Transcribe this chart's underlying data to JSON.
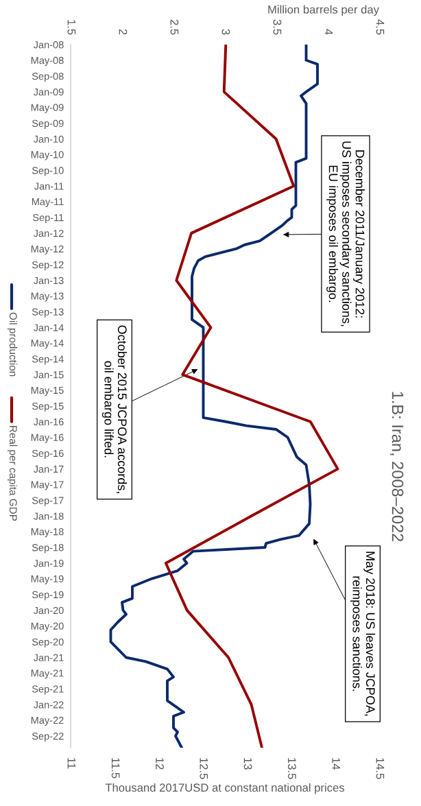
{
  "chart_data": {
    "type": "line",
    "orientation": "horizontal",
    "title": "1.B: Iran, 2008–2022",
    "x2label": "Million barrels per day",
    "xlabel": "Thousand 2017USD at constant national prices",
    "ylim": [
      "2022-12",
      "2008-01"
    ],
    "yticks": [
      {
        "value": "2008-01",
        "label": "Jan-08"
      },
      {
        "value": "2008-05",
        "label": "May-08"
      },
      {
        "value": "2008-09",
        "label": "Sep-08"
      },
      {
        "value": "2009-01",
        "label": "Jan-09"
      },
      {
        "value": "2009-05",
        "label": "May-09"
      },
      {
        "value": "2009-09",
        "label": "Sep-09"
      },
      {
        "value": "2010-01",
        "label": "Jan-10"
      },
      {
        "value": "2010-05",
        "label": "May-10"
      },
      {
        "value": "2010-09",
        "label": "Sep-10"
      },
      {
        "value": "2011-01",
        "label": "Jan-11"
      },
      {
        "value": "2011-05",
        "label": "May-11"
      },
      {
        "value": "2011-09",
        "label": "Sep-11"
      },
      {
        "value": "2012-01",
        "label": "Jan-12"
      },
      {
        "value": "2012-05",
        "label": "May-12"
      },
      {
        "value": "2012-09",
        "label": "Sep-12"
      },
      {
        "value": "2013-01",
        "label": "Jan-13"
      },
      {
        "value": "2013-05",
        "label": "May-13"
      },
      {
        "value": "2013-09",
        "label": "Sep-13"
      },
      {
        "value": "2014-01",
        "label": "Jan-14"
      },
      {
        "value": "2014-05",
        "label": "May-14"
      },
      {
        "value": "2014-09",
        "label": "Sep-14"
      },
      {
        "value": "2015-01",
        "label": "Jan-15"
      },
      {
        "value": "2015-05",
        "label": "May-15"
      },
      {
        "value": "2015-09",
        "label": "Sep-15"
      },
      {
        "value": "2016-01",
        "label": "Jan-16"
      },
      {
        "value": "2016-05",
        "label": "May-16"
      },
      {
        "value": "2016-09",
        "label": "Sep-16"
      },
      {
        "value": "2017-01",
        "label": "Jan-17"
      },
      {
        "value": "2017-05",
        "label": "May-17"
      },
      {
        "value": "2017-09",
        "label": "Sep-17"
      },
      {
        "value": "2018-01",
        "label": "Jan-18"
      },
      {
        "value": "2018-05",
        "label": "May-18"
      },
      {
        "value": "2018-09",
        "label": "Sep-18"
      },
      {
        "value": "2019-01",
        "label": "Jan-19"
      },
      {
        "value": "2019-05",
        "label": "May-19"
      },
      {
        "value": "2019-09",
        "label": "Sep-19"
      },
      {
        "value": "2020-01",
        "label": "Jan-20"
      },
      {
        "value": "2020-05",
        "label": "May-20"
      },
      {
        "value": "2020-09",
        "label": "Sep-20"
      },
      {
        "value": "2021-01",
        "label": "Jan-21"
      },
      {
        "value": "2021-05",
        "label": "May-21"
      },
      {
        "value": "2021-09",
        "label": "Sep-21"
      },
      {
        "value": "2022-01",
        "label": "Jan-22"
      },
      {
        "value": "2022-05",
        "label": "May-22"
      },
      {
        "value": "2022-09",
        "label": "Sep-22"
      }
    ],
    "x2lim": [
      1.5,
      4.5
    ],
    "x2ticks": [
      1.5,
      2,
      2.5,
      3,
      3.5,
      4,
      4.5
    ],
    "xlim": [
      11,
      14.5
    ],
    "xticks": [
      11,
      11.5,
      12,
      12.5,
      13,
      13.5,
      14,
      14.5
    ],
    "legend": "left",
    "series": [
      {
        "name": "Oil production",
        "color": "#0b2a6a",
        "axis": "x2",
        "x": [
          "2008-01",
          "2008-05",
          "2008-06",
          "2008-11",
          "2009-01",
          "2009-02",
          "2009-04",
          "2010-06",
          "2010-07",
          "2011-06",
          "2011-07",
          "2011-09",
          "2011-10",
          "2011-11",
          "2012-01",
          "2012-03",
          "2012-04",
          "2012-05",
          "2012-07",
          "2012-08",
          "2012-10",
          "2012-12",
          "2013-11",
          "2014-01",
          "2015-12",
          "2016-01",
          "2016-02",
          "2016-03",
          "2016-05",
          "2016-10",
          "2016-12",
          "2017-05",
          "2017-10",
          "2018-03",
          "2018-06",
          "2018-07",
          "2018-08",
          "2018-09",
          "2018-10",
          "2018-12",
          "2019-01",
          "2019-03",
          "2019-05",
          "2019-07",
          "2019-10",
          "2019-11",
          "2020-01",
          "2020-02",
          "2020-04",
          "2020-06",
          "2020-09",
          "2021-01",
          "2021-02",
          "2021-04",
          "2021-06",
          "2021-07",
          "2021-12",
          "2022-03",
          "2022-04",
          "2022-07",
          "2022-08",
          "2022-09",
          "2022-12"
        ],
        "values": [
          3.79,
          3.79,
          3.9,
          3.9,
          3.79,
          3.74,
          3.79,
          3.79,
          3.69,
          3.69,
          3.65,
          3.65,
          3.6,
          3.56,
          3.45,
          3.34,
          3.19,
          3.11,
          2.81,
          2.74,
          2.7,
          2.68,
          2.68,
          2.79,
          2.79,
          3.01,
          3.21,
          3.5,
          3.61,
          3.7,
          3.79,
          3.82,
          3.83,
          3.82,
          3.72,
          3.54,
          3.4,
          3.39,
          2.69,
          2.6,
          2.63,
          2.54,
          2.29,
          2.1,
          2.1,
          2.0,
          2.01,
          2.04,
          1.96,
          1.89,
          1.89,
          2.04,
          2.23,
          2.44,
          2.5,
          2.44,
          2.44,
          2.6,
          2.5,
          2.5,
          2.54,
          2.52,
          2.58
        ]
      },
      {
        "name": "Real per capita GDP",
        "color": "#960000",
        "x": [
          "2008-01",
          "2009-01",
          "2010-01",
          "2011-01",
          "2012-01",
          "2013-01",
          "2014-01",
          "2015-01",
          "2016-01",
          "2017-01",
          "2018-01",
          "2019-01",
          "2020-01",
          "2021-01",
          "2022-01",
          "2022-12"
        ],
        "values": [
          12.76,
          12.74,
          13.33,
          13.53,
          12.37,
          12.2,
          12.59,
          12.27,
          13.72,
          14.03,
          13.05,
          12.08,
          12.32,
          12.79,
          13.05,
          13.17
        ]
      }
    ],
    "annotations": [
      "December 2011/January 2012:\nUS imposes secondary sanctions,\nEU imposes oil embargo.",
      "October 2015 JCPOA accords,\noil embargo lifted.",
      "May 2018: US leaves JCPOA,\nreimposes sanctions."
    ]
  }
}
